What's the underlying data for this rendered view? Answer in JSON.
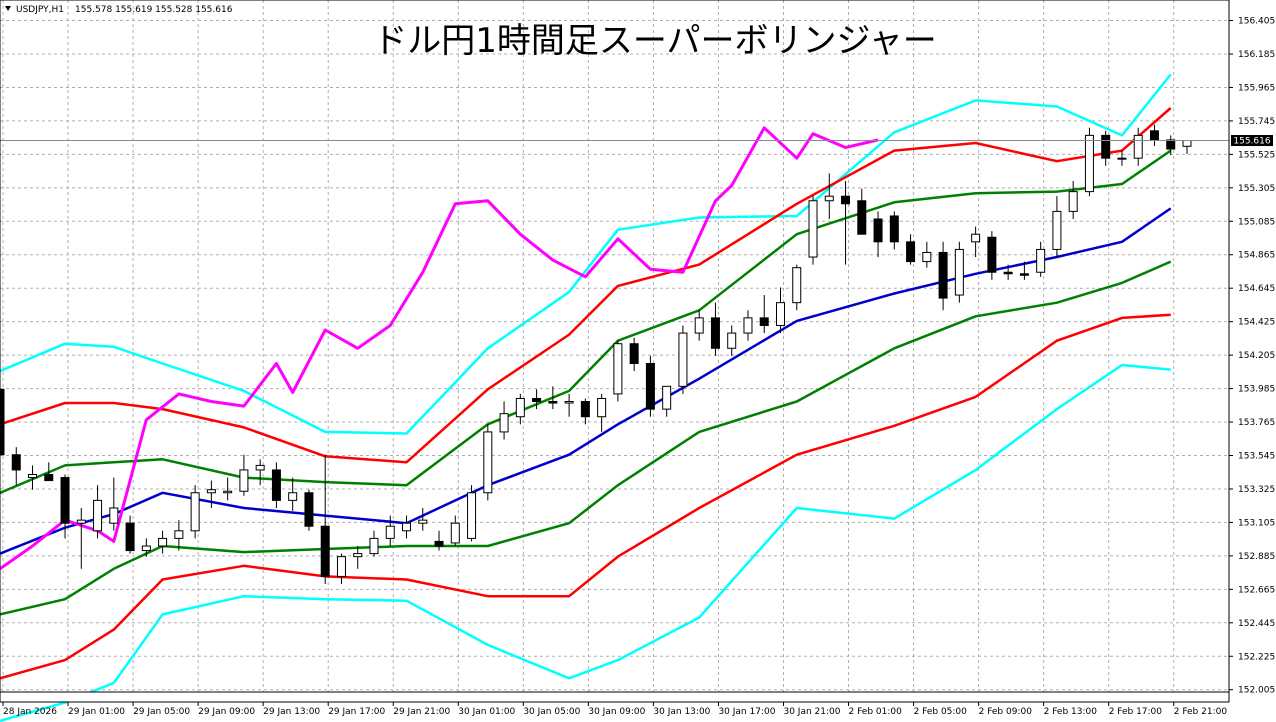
{
  "header": {
    "symbol": "USDJPY,H1",
    "ohlc": "155.578 155.619 155.528 155.616"
  },
  "chart_data": {
    "type": "line",
    "title": "ドル円1時間足スーパーボリンジャー",
    "ylim": [
      151.99,
      156.54
    ],
    "y_ticks": [
      "156.405",
      "156.185",
      "155.965",
      "155.745",
      "155.525",
      "155.305",
      "155.085",
      "154.865",
      "154.645",
      "154.425",
      "154.205",
      "153.985",
      "153.765",
      "153.545",
      "153.325",
      "153.105",
      "152.885",
      "152.665",
      "152.445",
      "152.225",
      "152.005"
    ],
    "x_ticks": [
      "28 Jan 2026",
      "29 Jan 01:00",
      "29 Jan 05:00",
      "29 Jan 09:00",
      "29 Jan 13:00",
      "29 Jan 17:00",
      "29 Jan 21:00",
      "30 Jan 01:00",
      "30 Jan 05:00",
      "30 Jan 09:00",
      "30 Jan 13:00",
      "30 Jan 17:00",
      "30 Jan 21:00",
      "2 Feb 01:00",
      "2 Feb 05:00",
      "2 Feb 09:00",
      "2 Feb 13:00",
      "2 Feb 17:00",
      "2 Feb 21:00"
    ],
    "current_price": "155.616",
    "current_value": 155.616,
    "x_index_range": [
      0,
      73
    ],
    "grid": true,
    "series": [
      {
        "color": "#00ffff",
        "x": [
          0,
          4,
          7,
          10,
          15,
          20,
          25,
          30,
          35,
          38,
          43,
          49,
          55,
          60,
          65,
          69,
          72
        ],
        "values": [
          154.1,
          154.28,
          154.26,
          154.15,
          153.97,
          153.7,
          153.69,
          154.25,
          154.62,
          155.03,
          155.11,
          155.12,
          155.67,
          155.88,
          155.84,
          155.65,
          156.05
        ]
      },
      {
        "color": "#ff0000",
        "x": [
          0,
          4,
          7,
          10,
          15,
          20,
          25,
          30,
          35,
          38,
          43,
          49,
          55,
          60,
          65,
          69,
          72
        ],
        "values": [
          153.75,
          153.89,
          153.89,
          153.85,
          153.73,
          153.54,
          153.5,
          153.98,
          154.34,
          154.66,
          154.8,
          155.2,
          155.55,
          155.6,
          155.48,
          155.55,
          155.83
        ]
      },
      {
        "color": "#008000",
        "x": [
          0,
          4,
          7,
          10,
          15,
          20,
          25,
          30,
          35,
          38,
          43,
          49,
          55,
          60,
          65,
          69,
          72
        ],
        "values": [
          153.3,
          153.48,
          153.5,
          153.52,
          153.4,
          153.37,
          153.35,
          153.75,
          153.97,
          154.3,
          154.5,
          155.0,
          155.21,
          155.27,
          155.28,
          155.33,
          155.55
        ]
      },
      {
        "color": "#0000cc",
        "x": [
          0,
          4,
          7,
          10,
          15,
          20,
          25,
          30,
          35,
          38,
          43,
          49,
          55,
          60,
          65,
          69,
          72
        ],
        "values": [
          152.9,
          153.07,
          153.16,
          153.3,
          153.2,
          153.15,
          153.1,
          153.35,
          153.55,
          153.75,
          154.05,
          154.43,
          154.61,
          154.74,
          154.85,
          154.95,
          155.17
        ]
      },
      {
        "color": "#008000",
        "x": [
          0,
          4,
          7,
          10,
          15,
          20,
          25,
          30,
          35,
          38,
          43,
          49,
          55,
          60,
          65,
          69,
          72
        ],
        "values": [
          152.5,
          152.6,
          152.8,
          152.95,
          152.91,
          152.93,
          152.95,
          152.95,
          153.1,
          153.35,
          153.7,
          153.9,
          154.25,
          154.46,
          154.55,
          154.68,
          154.82
        ]
      },
      {
        "color": "#ff0000",
        "x": [
          0,
          4,
          7,
          10,
          15,
          20,
          25,
          30,
          35,
          38,
          43,
          49,
          55,
          60,
          65,
          69,
          72
        ],
        "values": [
          152.08,
          152.2,
          152.4,
          152.73,
          152.82,
          152.75,
          152.73,
          152.62,
          152.62,
          152.88,
          153.2,
          153.55,
          153.74,
          153.93,
          154.3,
          154.45,
          154.47
        ]
      },
      {
        "color": "#00ffff",
        "x": [
          0,
          4,
          7,
          10,
          15,
          20,
          25,
          30,
          35,
          38,
          43,
          49,
          55,
          60,
          65,
          69,
          72
        ],
        "values": [
          151.8,
          151.92,
          152.05,
          152.5,
          152.62,
          152.6,
          152.59,
          152.3,
          152.08,
          152.2,
          152.48,
          153.2,
          153.13,
          153.45,
          153.85,
          154.14,
          154.11
        ]
      },
      {
        "color": "#ff00ff",
        "x": [
          0,
          2,
          4,
          6,
          7,
          9,
          11,
          13,
          15,
          17,
          18,
          20,
          22,
          24,
          26,
          28,
          30,
          32,
          34,
          36,
          38,
          40,
          42,
          44,
          45,
          47,
          49,
          50,
          52,
          54
        ],
        "values": [
          152.8,
          152.95,
          153.12,
          153.05,
          152.98,
          153.78,
          153.95,
          153.9,
          153.87,
          154.15,
          153.96,
          154.37,
          154.25,
          154.4,
          154.75,
          155.2,
          155.22,
          155.0,
          154.83,
          154.72,
          154.97,
          154.77,
          154.75,
          155.22,
          155.32,
          155.7,
          155.5,
          155.66,
          155.57,
          155.62
        ]
      }
    ],
    "candles": [
      {
        "x": 0,
        "o": 153.98,
        "h": 154.0,
        "l": 153.5,
        "c": 153.55
      },
      {
        "x": 1,
        "o": 153.55,
        "h": 153.6,
        "l": 153.35,
        "c": 153.45
      },
      {
        "x": 2,
        "o": 153.4,
        "h": 153.48,
        "l": 153.32,
        "c": 153.42
      },
      {
        "x": 3,
        "o": 153.42,
        "h": 153.5,
        "l": 153.4,
        "c": 153.38
      },
      {
        "x": 4,
        "o": 153.4,
        "h": 153.42,
        "l": 153.0,
        "c": 153.1
      },
      {
        "x": 5,
        "o": 153.1,
        "h": 153.2,
        "l": 152.8,
        "c": 153.12
      },
      {
        "x": 6,
        "o": 153.05,
        "h": 153.35,
        "l": 153.0,
        "c": 153.25
      },
      {
        "x": 7,
        "o": 153.1,
        "h": 153.4,
        "l": 153.05,
        "c": 153.2
      },
      {
        "x": 8,
        "o": 153.1,
        "h": 153.15,
        "l": 152.9,
        "c": 152.92
      },
      {
        "x": 9,
        "o": 152.92,
        "h": 153.0,
        "l": 152.88,
        "c": 152.95
      },
      {
        "x": 10,
        "o": 152.95,
        "h": 153.05,
        "l": 152.9,
        "c": 153.0
      },
      {
        "x": 11,
        "o": 153.0,
        "h": 153.12,
        "l": 152.92,
        "c": 153.05
      },
      {
        "x": 12,
        "o": 153.05,
        "h": 153.35,
        "l": 153.0,
        "c": 153.3
      },
      {
        "x": 13,
        "o": 153.3,
        "h": 153.38,
        "l": 153.2,
        "c": 153.32
      },
      {
        "x": 14,
        "o": 153.3,
        "h": 153.4,
        "l": 153.25,
        "c": 153.31
      },
      {
        "x": 15,
        "o": 153.31,
        "h": 153.55,
        "l": 153.28,
        "c": 153.45
      },
      {
        "x": 16,
        "o": 153.45,
        "h": 153.52,
        "l": 153.35,
        "c": 153.48
      },
      {
        "x": 17,
        "o": 153.45,
        "h": 153.5,
        "l": 153.2,
        "c": 153.25
      },
      {
        "x": 18,
        "o": 153.25,
        "h": 153.4,
        "l": 153.18,
        "c": 153.3
      },
      {
        "x": 19,
        "o": 153.3,
        "h": 153.32,
        "l": 153.05,
        "c": 153.08
      },
      {
        "x": 20,
        "o": 153.08,
        "h": 153.55,
        "l": 152.7,
        "c": 152.75
      },
      {
        "x": 21,
        "o": 152.75,
        "h": 152.9,
        "l": 152.7,
        "c": 152.88
      },
      {
        "x": 22,
        "o": 152.88,
        "h": 152.95,
        "l": 152.8,
        "c": 152.9
      },
      {
        "x": 23,
        "o": 152.9,
        "h": 153.05,
        "l": 152.88,
        "c": 153.0
      },
      {
        "x": 24,
        "o": 153.0,
        "h": 153.15,
        "l": 152.95,
        "c": 153.08
      },
      {
        "x": 25,
        "o": 153.05,
        "h": 153.15,
        "l": 153.0,
        "c": 153.1
      },
      {
        "x": 26,
        "o": 153.1,
        "h": 153.2,
        "l": 153.05,
        "c": 153.12
      },
      {
        "x": 27,
        "o": 152.98,
        "h": 153.05,
        "l": 152.92,
        "c": 152.95
      },
      {
        "x": 28,
        "o": 152.97,
        "h": 153.15,
        "l": 152.95,
        "c": 153.1
      },
      {
        "x": 29,
        "o": 153.0,
        "h": 153.35,
        "l": 152.98,
        "c": 153.3
      },
      {
        "x": 30,
        "o": 153.3,
        "h": 153.75,
        "l": 153.25,
        "c": 153.7
      },
      {
        "x": 31,
        "o": 153.7,
        "h": 153.9,
        "l": 153.65,
        "c": 153.82
      },
      {
        "x": 32,
        "o": 153.8,
        "h": 153.95,
        "l": 153.75,
        "c": 153.92
      },
      {
        "x": 33,
        "o": 153.92,
        "h": 153.98,
        "l": 153.85,
        "c": 153.9
      },
      {
        "x": 34,
        "o": 153.9,
        "h": 154.0,
        "l": 153.85,
        "c": 153.89
      },
      {
        "x": 35,
        "o": 153.89,
        "h": 153.95,
        "l": 153.8,
        "c": 153.9
      },
      {
        "x": 36,
        "o": 153.9,
        "h": 153.92,
        "l": 153.75,
        "c": 153.8
      },
      {
        "x": 37,
        "o": 153.8,
        "h": 153.95,
        "l": 153.7,
        "c": 153.92
      },
      {
        "x": 38,
        "o": 153.95,
        "h": 154.3,
        "l": 153.9,
        "c": 154.28
      },
      {
        "x": 39,
        "o": 154.28,
        "h": 154.32,
        "l": 154.1,
        "c": 154.15
      },
      {
        "x": 40,
        "o": 154.15,
        "h": 154.2,
        "l": 153.8,
        "c": 153.85
      },
      {
        "x": 41,
        "o": 153.85,
        "h": 154.0,
        "l": 153.8,
        "c": 154.0
      },
      {
        "x": 42,
        "o": 154.0,
        "h": 154.4,
        "l": 153.95,
        "c": 154.35
      },
      {
        "x": 43,
        "o": 154.35,
        "h": 154.5,
        "l": 154.3,
        "c": 154.45
      },
      {
        "x": 44,
        "o": 154.45,
        "h": 154.55,
        "l": 154.2,
        "c": 154.25
      },
      {
        "x": 45,
        "o": 154.25,
        "h": 154.4,
        "l": 154.2,
        "c": 154.35
      },
      {
        "x": 46,
        "o": 154.35,
        "h": 154.5,
        "l": 154.3,
        "c": 154.45
      },
      {
        "x": 47,
        "o": 154.45,
        "h": 154.6,
        "l": 154.35,
        "c": 154.4
      },
      {
        "x": 48,
        "o": 154.4,
        "h": 154.65,
        "l": 154.35,
        "c": 154.55
      },
      {
        "x": 49,
        "o": 154.55,
        "h": 154.8,
        "l": 154.5,
        "c": 154.78
      },
      {
        "x": 50,
        "o": 154.85,
        "h": 155.25,
        "l": 154.8,
        "c": 155.22
      },
      {
        "x": 51,
        "o": 155.22,
        "h": 155.4,
        "l": 155.1,
        "c": 155.25
      },
      {
        "x": 52,
        "o": 155.25,
        "h": 155.35,
        "l": 154.8,
        "c": 155.2
      },
      {
        "x": 53,
        "o": 155.22,
        "h": 155.3,
        "l": 155.0,
        "c": 155.0
      },
      {
        "x": 54,
        "o": 155.1,
        "h": 155.15,
        "l": 154.85,
        "c": 154.95
      },
      {
        "x": 55,
        "o": 155.12,
        "h": 155.15,
        "l": 154.9,
        "c": 154.95
      },
      {
        "x": 56,
        "o": 154.95,
        "h": 155.0,
        "l": 154.8,
        "c": 154.82
      },
      {
        "x": 57,
        "o": 154.82,
        "h": 154.95,
        "l": 154.78,
        "c": 154.88
      },
      {
        "x": 58,
        "o": 154.88,
        "h": 154.95,
        "l": 154.5,
        "c": 154.58
      },
      {
        "x": 59,
        "o": 154.6,
        "h": 154.95,
        "l": 154.55,
        "c": 154.9
      },
      {
        "x": 60,
        "o": 154.95,
        "h": 155.05,
        "l": 154.85,
        "c": 155.0
      },
      {
        "x": 61,
        "o": 154.98,
        "h": 155.02,
        "l": 154.7,
        "c": 154.75
      },
      {
        "x": 62,
        "o": 154.75,
        "h": 154.8,
        "l": 154.7,
        "c": 154.74
      },
      {
        "x": 63,
        "o": 154.74,
        "h": 154.82,
        "l": 154.7,
        "c": 154.73
      },
      {
        "x": 64,
        "o": 154.75,
        "h": 154.95,
        "l": 154.72,
        "c": 154.9
      },
      {
        "x": 65,
        "o": 154.9,
        "h": 155.25,
        "l": 154.85,
        "c": 155.15
      },
      {
        "x": 66,
        "o": 155.15,
        "h": 155.35,
        "l": 155.1,
        "c": 155.28
      },
      {
        "x": 67,
        "o": 155.28,
        "h": 155.7,
        "l": 155.25,
        "c": 155.65
      },
      {
        "x": 68,
        "o": 155.65,
        "h": 155.68,
        "l": 155.45,
        "c": 155.5
      },
      {
        "x": 69,
        "o": 155.5,
        "h": 155.55,
        "l": 155.45,
        "c": 155.5
      },
      {
        "x": 70,
        "o": 155.5,
        "h": 155.7,
        "l": 155.45,
        "c": 155.65
      },
      {
        "x": 71,
        "o": 155.68,
        "h": 155.72,
        "l": 155.58,
        "c": 155.62
      },
      {
        "x": 72,
        "o": 155.62,
        "h": 155.65,
        "l": 155.52,
        "c": 155.56
      },
      {
        "x": 73,
        "o": 155.578,
        "h": 155.619,
        "l": 155.528,
        "c": 155.616
      }
    ]
  }
}
